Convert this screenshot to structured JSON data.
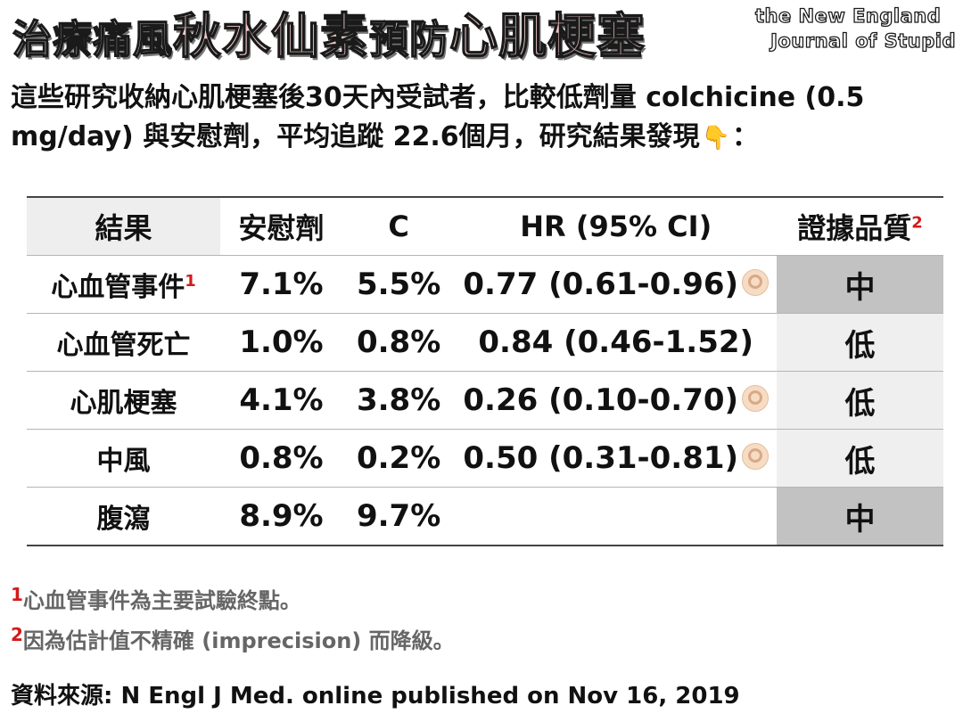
{
  "title": {
    "part1": "治療痛風",
    "highlight1": "秋水仙素",
    "part2": "預防",
    "highlight2": "心肌梗塞"
  },
  "logo": {
    "line1": "the New England",
    "line2": "Journal of Stupid"
  },
  "intro": {
    "text1": "這些研究收納心肌梗塞後30天內受試者，比較低劑量 colchicine (0.5 mg/day) 與安慰劑，平均追蹤 22.6個月，研究結果發現",
    "pointer_icon": "pointing-down-hand-icon",
    "text2": "："
  },
  "table": {
    "headers": {
      "outcome": "結果",
      "placebo": "安慰劑",
      "colchicine": "C",
      "hr": "HR (95% CI)",
      "quality": "證據品質",
      "quality_note": "2"
    },
    "rows": [
      {
        "outcome": "心血管事件",
        "note": "1",
        "placebo": "7.1%",
        "colchicine": "5.5%",
        "hr": "0.77 (0.61-0.96)",
        "ok": true,
        "quality": "中",
        "shade": "gray"
      },
      {
        "outcome": "心血管死亡",
        "note": "",
        "placebo": "1.0%",
        "colchicine": "0.8%",
        "hr": "0.84 (0.46-1.52)",
        "ok": false,
        "quality": "低",
        "shade": "light"
      },
      {
        "outcome": "心肌梗塞",
        "note": "",
        "placebo": "4.1%",
        "colchicine": "3.8%",
        "hr": "0.26 (0.10-0.70)",
        "ok": true,
        "quality": "低",
        "shade": "light"
      },
      {
        "outcome": "中風",
        "note": "",
        "placebo": "0.8%",
        "colchicine": "0.2%",
        "hr": "0.50 (0.31-0.81)",
        "ok": true,
        "quality": "低",
        "shade": "light"
      },
      {
        "outcome": "腹瀉",
        "note": "",
        "placebo": "8.9%",
        "colchicine": "9.7%",
        "hr": "",
        "ok": false,
        "quality": "中",
        "shade": "gray"
      }
    ],
    "ok_icon": "ok-hand-icon"
  },
  "footnotes": [
    {
      "num": "1",
      "text": "心血管事件為主要試驗終點。"
    },
    {
      "num": "2",
      "text": "因為估計值不精確 (imprecision) 而降級。"
    }
  ],
  "source": "資料來源: N Engl J Med. online published on Nov 16, 2019",
  "colors": {
    "highlight": "#f2c9c9",
    "note_red": "#d21a1a",
    "quality_gray": "#c2c2c2",
    "quality_light": "#efefef"
  }
}
